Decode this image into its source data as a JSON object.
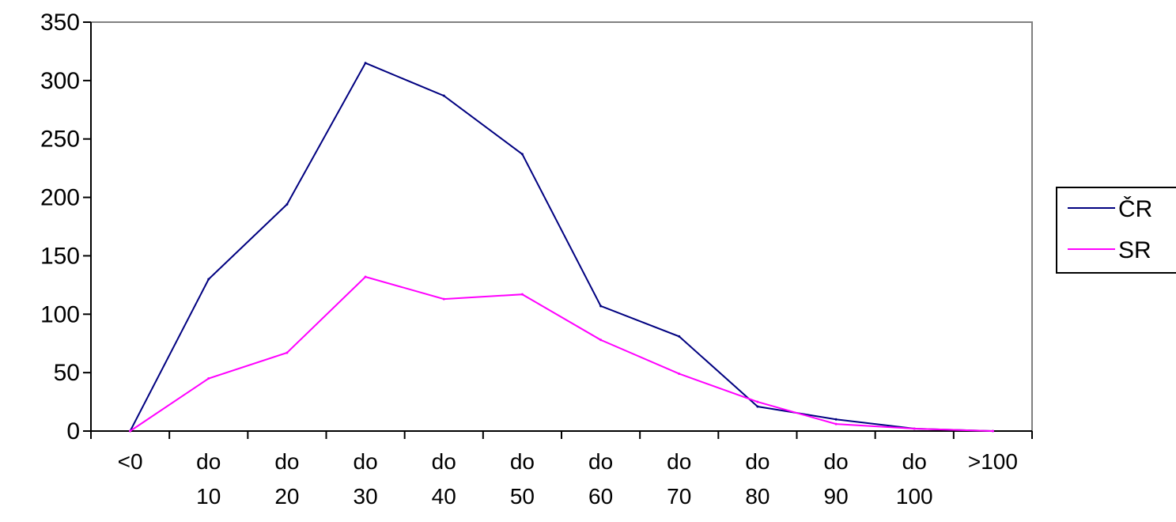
{
  "chart_data": {
    "type": "line",
    "title": "",
    "xlabel": "",
    "ylabel": "",
    "categories": [
      [
        "<0"
      ],
      [
        "do",
        "10"
      ],
      [
        "do",
        "20"
      ],
      [
        "do",
        "30"
      ],
      [
        "do",
        "40"
      ],
      [
        "do",
        "50"
      ],
      [
        "do",
        "60"
      ],
      [
        "do",
        "70"
      ],
      [
        "do",
        "80"
      ],
      [
        "do",
        "90"
      ],
      [
        "do",
        "100"
      ],
      [
        ">100"
      ]
    ],
    "ylim": [
      0,
      350
    ],
    "yticks": [
      0,
      50,
      100,
      150,
      200,
      250,
      300,
      350
    ],
    "grid": false,
    "legend_position": "right",
    "series": [
      {
        "name": "ČR",
        "color": "#000080",
        "values": [
          0,
          130,
          194,
          315,
          287,
          237,
          107,
          81,
          21,
          10,
          2,
          0
        ]
      },
      {
        "name": "SR",
        "color": "#FF00FF",
        "values": [
          0,
          45,
          67,
          132,
          113,
          117,
          78,
          49,
          25,
          6,
          2,
          0
        ]
      }
    ]
  }
}
